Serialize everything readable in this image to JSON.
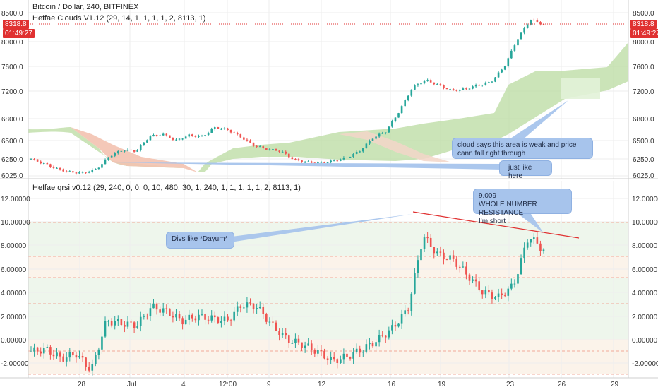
{
  "top_panel": {
    "title": "Bitcoin / Dollar, 240, BITFINEX",
    "indicator": "Heffae Clouds V1.12 (29, 14, 1, 1, 1, 1, 2, 8113, 1)",
    "y_ticks_left": [
      "8500.0",
      "8000.0",
      "7600.0",
      "7200.0",
      "6800.0",
      "6500.0",
      "6250.0",
      "6025.0"
    ],
    "y_ticks_right": [
      "8500.0",
      "8000.0",
      "7600.0",
      "7200.0",
      "6800.0",
      "6500.0",
      "6250.0",
      "6025.0"
    ],
    "price_tag": "8318.8",
    "time_tag": "01:49:27",
    "price_tag_color": "#e03131",
    "time_tag_color": "#e03131"
  },
  "bottom_panel": {
    "title": "Heffae qrsi v0.12 (29, 240, 0, 0, 0, 10, 480, 30, 1, 240, 1, 1, 1, 1, 1, 2, 8113, 1)",
    "y_ticks": [
      "12.00000",
      "10.00000",
      "8.00000",
      "6.00000",
      "4.00000",
      "2.00000",
      "0.00000",
      "-2.00000"
    ]
  },
  "x_axis": {
    "labels": [
      "28",
      "Jul",
      "4",
      "12:00",
      "9",
      "12",
      "16",
      "19",
      "23",
      "26",
      "29"
    ]
  },
  "annotations": {
    "cloud_note": "cloud says this area is weak and price cann fall right through",
    "just_like": "just like here",
    "divs_note": "Divs like *Dayum*",
    "resistance_value": "9.009",
    "resistance_line1": "WHOLE NUMBER RESISTANCE",
    "resistance_line2": "I'm short"
  },
  "colors": {
    "up": "#26a69a",
    "down": "#ef5350",
    "cloud_green": "#b9dba0",
    "cloud_red": "#f3c2b0",
    "callout": "#a7c4ec",
    "trendline": "#e03131"
  },
  "chart_data": [
    {
      "type": "candlestick",
      "title": "Bitcoin / Dollar, 240, BITFINEX",
      "ylim": [
        6025,
        8600
      ],
      "last_price": 8318.8,
      "close_path": [
        6280,
        6210,
        6130,
        6080,
        6070,
        6130,
        6330,
        6420,
        6400,
        6620,
        6660,
        6560,
        6640,
        6620,
        6760,
        6720,
        6610,
        6480,
        6430,
        6400,
        6270,
        6230,
        6220,
        6250,
        6300,
        6400,
        6600,
        6700,
        7000,
        7360,
        7480,
        7400,
        7320,
        7340,
        7400,
        7450,
        7680,
        8100,
        8400,
        8318.8
      ]
    },
    {
      "type": "line",
      "title": "Heffae qrsi v0.12 (29, 240, 0, 0, 0, 10, 480, 30, 1, 240, 1, 1, 1, 1, 1, 2, 8113, 1)",
      "ylim": [
        -3,
        12.5
      ],
      "divergence_high": 9.009,
      "path": [
        -1.0,
        -0.8,
        -1.6,
        -1.2,
        -2.6,
        1.6,
        1.4,
        1.2,
        2.8,
        2.4,
        1.6,
        2.0,
        1.8,
        1.6,
        3.0,
        2.8,
        1.2,
        0.0,
        -0.4,
        -1.0,
        -1.8,
        -1.4,
        -0.8,
        0.0,
        1.0,
        2.6,
        8.8,
        7.2,
        6.8,
        5.4,
        4.0,
        3.6,
        4.6,
        8.8,
        7.6
      ]
    }
  ]
}
